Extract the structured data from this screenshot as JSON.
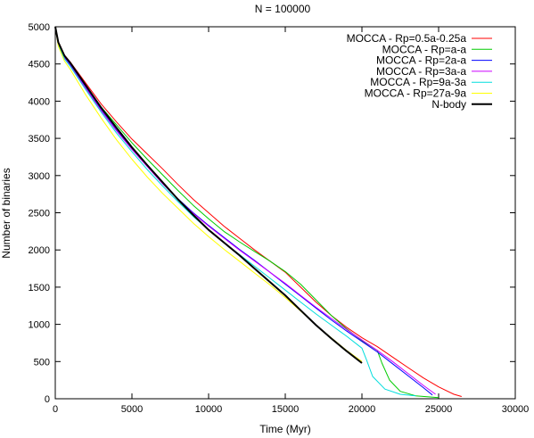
{
  "chart_data": {
    "type": "line",
    "title": "N = 100000",
    "xlabel": "Time (Myr)",
    "ylabel": "Number of binaries",
    "xlim": [
      0,
      30000
    ],
    "ylim": [
      0,
      5000
    ],
    "xticks": [
      0,
      5000,
      10000,
      15000,
      20000,
      25000,
      30000
    ],
    "yticks": [
      0,
      500,
      1000,
      1500,
      2000,
      2500,
      3000,
      3500,
      4000,
      4500,
      5000
    ],
    "grid": false,
    "legend_position": "top-right",
    "series": [
      {
        "name": "MOCCA - Rp=0.5a-0.25a",
        "color": "#ff0000",
        "width": 1,
        "x": [
          0,
          200,
          600,
          1000,
          2000,
          3000,
          4000,
          5000,
          6000,
          7000,
          8000,
          9000,
          10000,
          11000,
          12000,
          13000,
          14000,
          15000,
          16000,
          17000,
          18000,
          19000,
          20000,
          21000,
          22000,
          23000,
          24000,
          25000,
          26000,
          26500
        ],
        "y": [
          5000,
          4800,
          4620,
          4520,
          4240,
          3960,
          3720,
          3490,
          3290,
          3090,
          2880,
          2680,
          2500,
          2320,
          2160,
          2000,
          1850,
          1700,
          1500,
          1300,
          1120,
          960,
          820,
          700,
          560,
          420,
          280,
          160,
          60,
          30
        ]
      },
      {
        "name": "MOCCA - Rp=a-a",
        "color": "#00cc00",
        "width": 1,
        "x": [
          0,
          200,
          600,
          1000,
          2000,
          3000,
          4000,
          5000,
          6000,
          7000,
          8000,
          9000,
          10000,
          11000,
          12000,
          13000,
          14000,
          15000,
          16000,
          17000,
          18000,
          19000,
          20000,
          21000,
          21300,
          21800,
          22500,
          23500,
          25000
        ],
        "y": [
          5000,
          4780,
          4600,
          4500,
          4210,
          3920,
          3680,
          3440,
          3220,
          3010,
          2800,
          2600,
          2420,
          2250,
          2110,
          1980,
          1850,
          1710,
          1540,
          1330,
          1120,
          940,
          780,
          650,
          480,
          250,
          100,
          40,
          15
        ]
      },
      {
        "name": "MOCCA - Rp=2a-a",
        "color": "#0000ff",
        "width": 1,
        "x": [
          0,
          200,
          600,
          1000,
          2000,
          3000,
          4000,
          5000,
          6000,
          7000,
          8000,
          9000,
          10000,
          11000,
          12000,
          13000,
          14000,
          15000,
          16000,
          17000,
          18000,
          19000,
          20000,
          21000,
          22000,
          23000,
          24000,
          24600
        ],
        "y": [
          5000,
          4770,
          4590,
          4480,
          4180,
          3880,
          3610,
          3360,
          3130,
          2900,
          2690,
          2500,
          2330,
          2170,
          2010,
          1860,
          1700,
          1540,
          1380,
          1220,
          1060,
          910,
          770,
          630,
          470,
          310,
          150,
          50
        ]
      },
      {
        "name": "MOCCA - Rp=3a-a",
        "color": "#cc00ff",
        "width": 1,
        "x": [
          0,
          200,
          600,
          1000,
          2000,
          3000,
          4000,
          5000,
          6000,
          7000,
          8000,
          9000,
          10000,
          11000,
          12000,
          13000,
          14000,
          15000,
          16000,
          17000,
          18000,
          19000,
          20000,
          21000,
          22000,
          23000,
          24000,
          24800
        ],
        "y": [
          5000,
          4760,
          4580,
          4470,
          4170,
          3870,
          3600,
          3350,
          3120,
          2890,
          2680,
          2490,
          2320,
          2160,
          2000,
          1850,
          1700,
          1550,
          1390,
          1230,
          1080,
          930,
          790,
          650,
          500,
          340,
          180,
          60
        ]
      },
      {
        "name": "MOCCA - Rp=9a-3a",
        "color": "#00dddd",
        "width": 1,
        "x": [
          0,
          200,
          600,
          1000,
          2000,
          3000,
          4000,
          5000,
          6000,
          7000,
          8000,
          9000,
          10000,
          11000,
          12000,
          13000,
          14000,
          15000,
          16000,
          17000,
          18000,
          19000,
          20000,
          20300,
          20700,
          21500,
          22500,
          23500
        ],
        "y": [
          5000,
          4760,
          4570,
          4460,
          4150,
          3850,
          3570,
          3320,
          3080,
          2860,
          2650,
          2450,
          2270,
          2100,
          1940,
          1780,
          1620,
          1460,
          1300,
          1140,
          990,
          840,
          680,
          520,
          300,
          130,
          60,
          40
        ]
      },
      {
        "name": "MOCCA - Rp=27a-9a",
        "color": "#ffff00",
        "width": 1,
        "x": [
          0,
          200,
          600,
          1000,
          2000,
          3000,
          4000,
          5000,
          6000,
          7000,
          8000,
          9000,
          10000,
          11000,
          12000,
          13000,
          14000,
          15000,
          16000,
          17000,
          18000,
          19000,
          20000
        ],
        "y": [
          5000,
          4740,
          4540,
          4420,
          4080,
          3770,
          3480,
          3220,
          2980,
          2760,
          2560,
          2360,
          2180,
          2010,
          1850,
          1690,
          1530,
          1360,
          1180,
          990,
          820,
          650,
          500
        ]
      },
      {
        "name": "N-body",
        "color": "#000000",
        "width": 2,
        "x": [
          0,
          200,
          600,
          1000,
          2000,
          3000,
          4000,
          5000,
          6000,
          7000,
          8000,
          9000,
          10000,
          11000,
          12000,
          13000,
          14000,
          15000,
          16000,
          17000,
          18000,
          19000,
          20000
        ],
        "y": [
          5000,
          4790,
          4610,
          4510,
          4210,
          3910,
          3640,
          3380,
          3140,
          2910,
          2680,
          2470,
          2270,
          2100,
          1930,
          1750,
          1570,
          1390,
          1190,
          990,
          810,
          640,
          480
        ]
      }
    ]
  }
}
